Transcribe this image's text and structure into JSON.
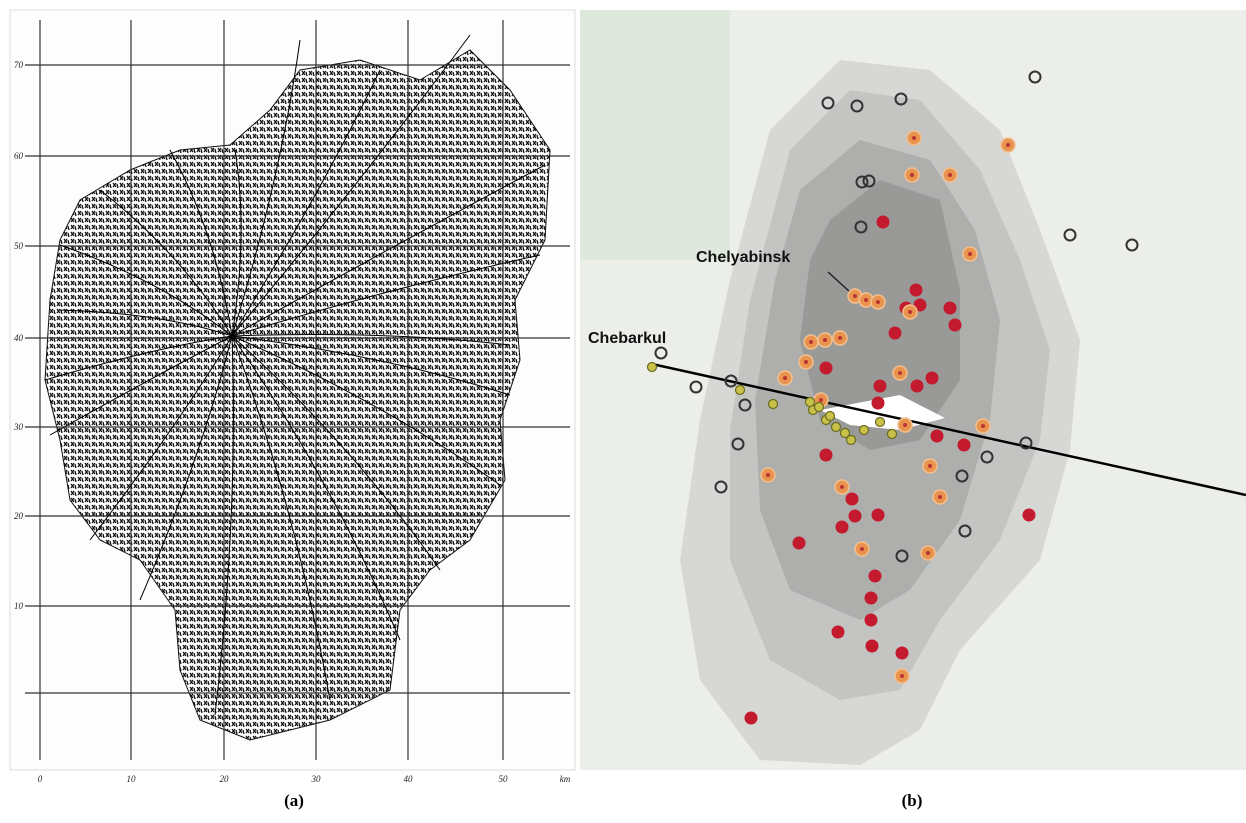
{
  "panel_a": {
    "caption": "(a)",
    "x_labels": [
      0,
      10,
      20,
      30,
      40,
      50
    ],
    "x_unit": "km",
    "y_labels": [
      70,
      60,
      50,
      40,
      30,
      20,
      10
    ]
  },
  "panel_b": {
    "caption": "(b)",
    "labels": [
      "Chelyabinsk",
      "Chebarkul"
    ]
  }
}
